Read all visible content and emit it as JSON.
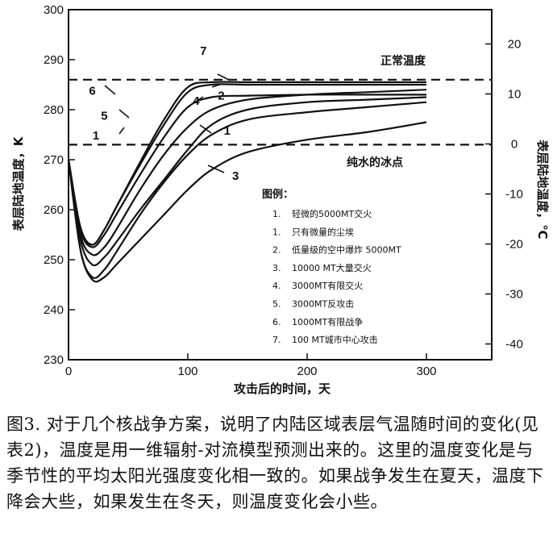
{
  "chart_data": {
    "type": "line",
    "title": "",
    "xlabel": "攻击后的时间，天",
    "ylabel": "表层陆地温度，K",
    "y2label": "表层陆地温度，℃",
    "xlim": [
      0,
      300
    ],
    "ylim": [
      230,
      300
    ],
    "y2lim": [
      -43.15,
      26.85
    ],
    "x_ticks": [
      "0",
      "100",
      "200",
      "300"
    ],
    "y_ticks": [
      "230",
      "240",
      "250",
      "260",
      "270",
      "280",
      "290",
      "300"
    ],
    "y2_ticks": [
      "20",
      "10",
      "0",
      "-10",
      "-20",
      "-30",
      "-40"
    ],
    "grid": false,
    "legend_position": "center-right",
    "legend_title": "图例：",
    "legend": [
      {
        "key": "1.",
        "text": "轻微的5000MT交火"
      },
      {
        "key": "1.",
        "text": "只有微量的尘埃"
      },
      {
        "key": "2.",
        "text": "低量级的空中爆炸 5000MT"
      },
      {
        "key": "3.",
        "text": "10000 MT大量交火"
      },
      {
        "key": "4.",
        "text": "3000MT有限交火"
      },
      {
        "key": "5.",
        "text": "3000MT反攻击"
      },
      {
        "key": "6.",
        "text": "1000MT有限战争"
      },
      {
        "key": "7.",
        "text": "100 MT城市中心攻击"
      }
    ],
    "reference_lines": [
      {
        "y": 286,
        "label": "正常温度"
      },
      {
        "y": 273,
        "label": "纯水的冰点"
      }
    ],
    "series": [
      {
        "name": "1",
        "x": [
          0,
          10,
          20,
          30,
          40,
          60,
          80,
          100,
          120,
          150,
          200,
          250,
          300
        ],
        "y": [
          270,
          254,
          249,
          250.5,
          253.5,
          260,
          266,
          272,
          277,
          280,
          281.5,
          282,
          282.5
        ]
      },
      {
        "name": "2",
        "x": [
          0,
          10,
          20,
          30,
          40,
          60,
          80,
          100,
          120,
          150,
          200,
          250,
          300
        ],
        "y": [
          270,
          255,
          251,
          252.5,
          256,
          264,
          271,
          276.5,
          280,
          282,
          283,
          283.5,
          284
        ]
      },
      {
        "name": "3",
        "x": [
          0,
          10,
          20,
          30,
          40,
          60,
          80,
          100,
          120,
          150,
          200,
          250,
          300
        ],
        "y": [
          270,
          252,
          246,
          246.5,
          249,
          254,
          259,
          264,
          268,
          271.5,
          274,
          275.5,
          277.5
        ]
      },
      {
        "name": "4",
        "x": [
          0,
          10,
          20,
          30,
          40,
          60,
          80,
          100,
          120,
          150,
          200,
          250,
          300
        ],
        "y": [
          270,
          252,
          246.5,
          248,
          251.5,
          259,
          265.5,
          271,
          275,
          278,
          279.5,
          280.5,
          281.5
        ]
      },
      {
        "name": "5",
        "x": [
          0,
          10,
          20,
          30,
          40,
          60,
          80,
          100,
          120,
          150,
          200,
          250,
          300
        ],
        "y": [
          270,
          256,
          252.5,
          255,
          259,
          267,
          274.5,
          280.5,
          282.5,
          282.8,
          283,
          283,
          283
        ]
      },
      {
        "name": "6",
        "x": [
          0,
          10,
          20,
          30,
          40,
          60,
          80,
          100,
          120,
          150,
          200,
          250,
          300
        ],
        "y": [
          270,
          256.5,
          253,
          256,
          260.5,
          269,
          277,
          283.5,
          285,
          285,
          285,
          285,
          285
        ]
      },
      {
        "name": "7",
        "x": [
          0,
          10,
          20,
          30,
          40,
          60,
          80,
          100,
          120,
          150,
          200,
          250,
          300
        ],
        "y": [
          270,
          256,
          253,
          256,
          260.5,
          269.5,
          278,
          284.5,
          285.5,
          285.5,
          285.5,
          285.5,
          285.5
        ]
      }
    ],
    "curve_labels": [
      {
        "text": "7",
        "x": 113,
        "y": 291
      },
      {
        "text": "2",
        "x": 128,
        "y": 282
      },
      {
        "text": "4",
        "x": 107,
        "y": 281
      },
      {
        "text": "1",
        "x": 133,
        "y": 275
      },
      {
        "text": "3",
        "x": 140,
        "y": 266
      },
      {
        "text": "6",
        "x": 20,
        "y": 283
      },
      {
        "text": "5",
        "x": 30,
        "y": 278
      },
      {
        "text": "1",
        "x": 23,
        "y": 274
      }
    ]
  },
  "caption": "图3. 对于几个核战争方案，说明了内陆区域表层气温随时间的变化(见表2)，温度是用一维辐射-对流模型预测出来的。这里的温度变化是与季节性的平均太阳光强度变化相一致的。如果战争发生在夏天，温度下降会大些，如果发生在冬天，则温度变化会小些。"
}
